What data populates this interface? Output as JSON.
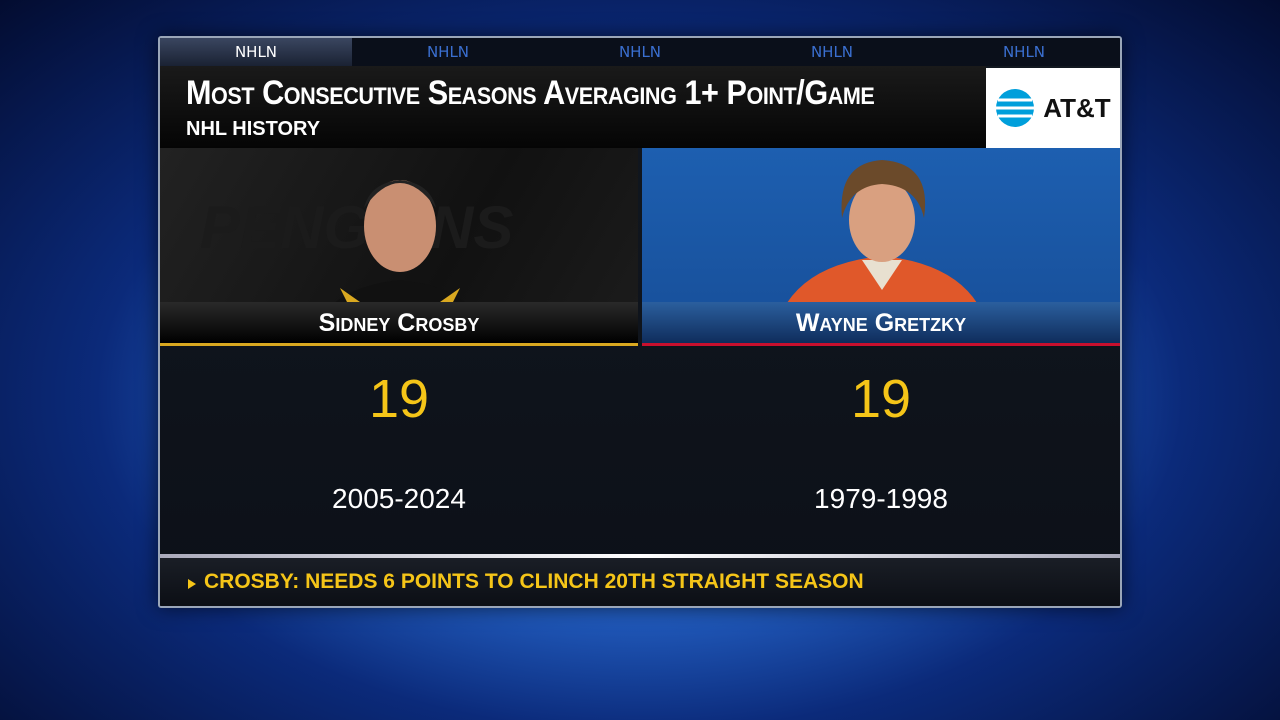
{
  "tabs": [
    "NHLN",
    "NHLN",
    "NHLN",
    "NHLN",
    "NHLN"
  ],
  "header": {
    "title": "Most Consecutive Seasons Averaging 1+ Point/Game",
    "subtitle": "NHL HISTORY",
    "sponsor": "AT&T"
  },
  "players": [
    {
      "name": "Sidney Crosby",
      "value": 19,
      "years": "2005-2024"
    },
    {
      "name": "Wayne Gretzky",
      "value": 19,
      "years": "1979-1998"
    }
  ],
  "footer": {
    "note": "CROSBY: NEEDS 6 POINTS TO CLINCH 20TH STRAIGHT SEASON"
  }
}
